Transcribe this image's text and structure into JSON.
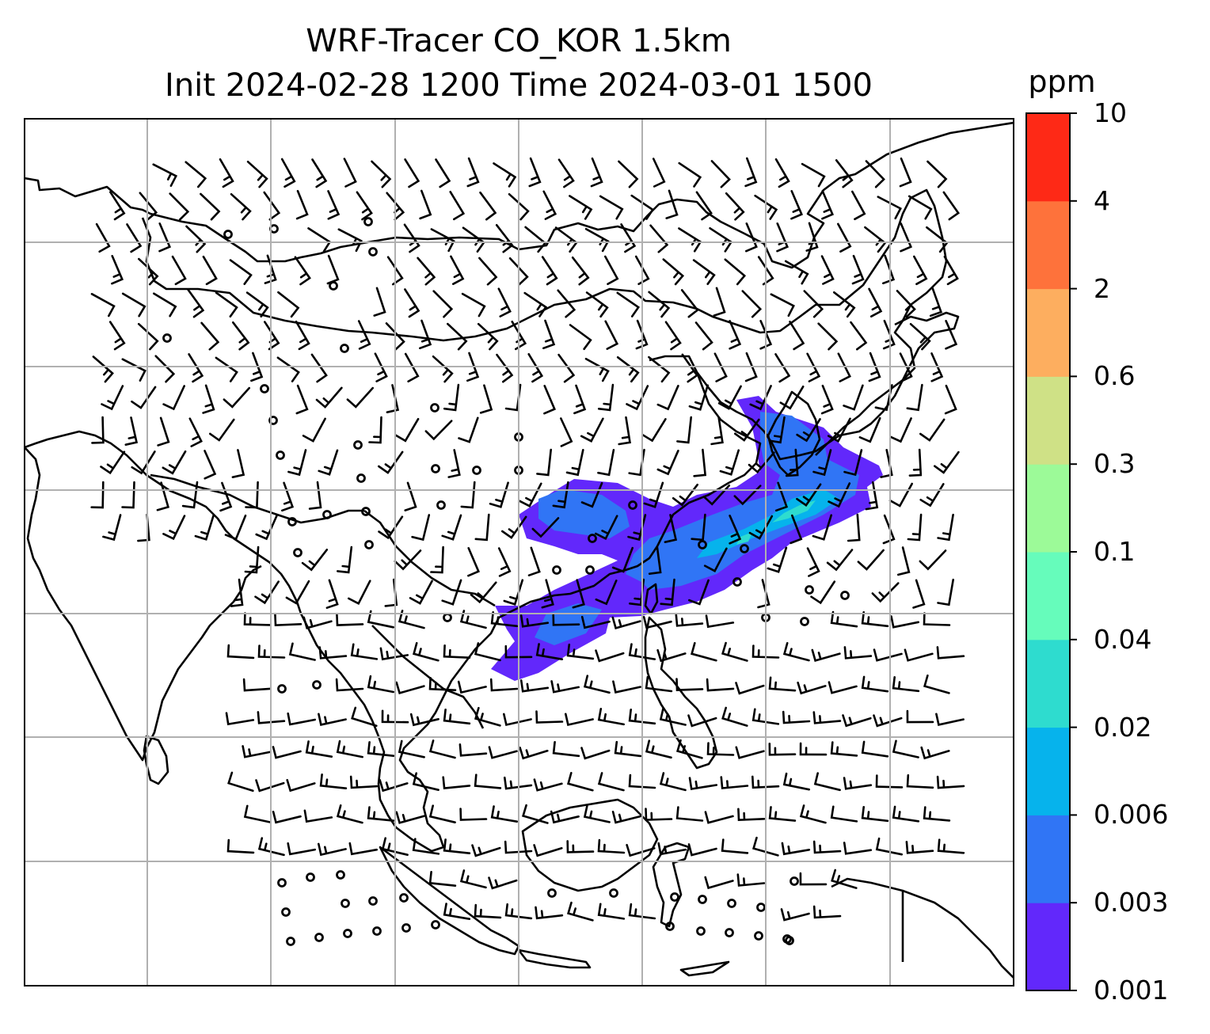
{
  "title": {
    "line1": "WRF-Tracer CO_KOR 1.5km",
    "line2": "Init 2024-02-28 1200 Time 2024-03-01 1500"
  },
  "colorbar": {
    "unit": "ppm",
    "levels": [
      "0.001",
      "0.003",
      "0.006",
      "0.02",
      "0.04",
      "0.1",
      "0.3",
      "0.6",
      "2",
      "4",
      "10"
    ],
    "colors": [
      "#6228fb",
      "#3075f5",
      "#06b3ec",
      "#2edccf",
      "#66fcbb",
      "#9cfa98",
      "#cfe186",
      "#fdae5f",
      "#fe723b",
      "#fe2916"
    ]
  },
  "map": {
    "gridlines": true,
    "coastline_color": "#000000",
    "grid_color": "#b0b0b0",
    "plume_colors": [
      "#6228fb",
      "#3075f5",
      "#06b3ec",
      "#2edccf"
    ],
    "wind_barb_color": "#000000"
  }
}
